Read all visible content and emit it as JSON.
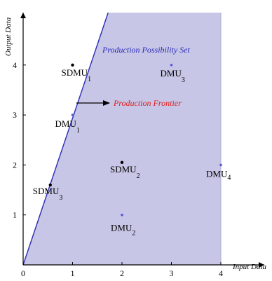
{
  "chart_data": {
    "type": "scatter",
    "xlabel": "Input Data",
    "ylabel": "Output Data",
    "xlim": [
      0,
      4
    ],
    "ylim": [
      0,
      5
    ],
    "xticks": [
      0,
      1,
      2,
      3,
      4
    ],
    "yticks": [
      1,
      2,
      3,
      4
    ],
    "grid": false,
    "region": {
      "label": "Production Possibility Set",
      "label_color": "#2a2ab8",
      "fill_color": "#c7c6e6"
    },
    "frontier": {
      "label": "Production Frontier",
      "label_color": "#e01a1a",
      "line_color": "#3434b8",
      "x": [
        0,
        1.72
      ],
      "y": [
        0,
        5
      ]
    },
    "points": [
      {
        "name": "DMU",
        "sub": "1",
        "x": 1.0,
        "y": 3.0,
        "color": "#5a5ad8"
      },
      {
        "name": "DMU",
        "sub": "2",
        "x": 2.0,
        "y": 1.0,
        "color": "#5a5ad8"
      },
      {
        "name": "DMU",
        "sub": "3",
        "x": 3.0,
        "y": 4.0,
        "color": "#5a5ad8"
      },
      {
        "name": "DMU",
        "sub": "4",
        "x": 4.0,
        "y": 2.0,
        "color": "#5a5ad8"
      },
      {
        "name": "SDMU",
        "sub": "1",
        "x": 1.0,
        "y": 4.0,
        "color": "#000000"
      },
      {
        "name": "SDMU",
        "sub": "2",
        "x": 2.0,
        "y": 2.05,
        "color": "#000000"
      },
      {
        "name": "SDMU",
        "sub": "3",
        "x": 0.55,
        "y": 1.6,
        "color": "#000000"
      }
    ]
  }
}
